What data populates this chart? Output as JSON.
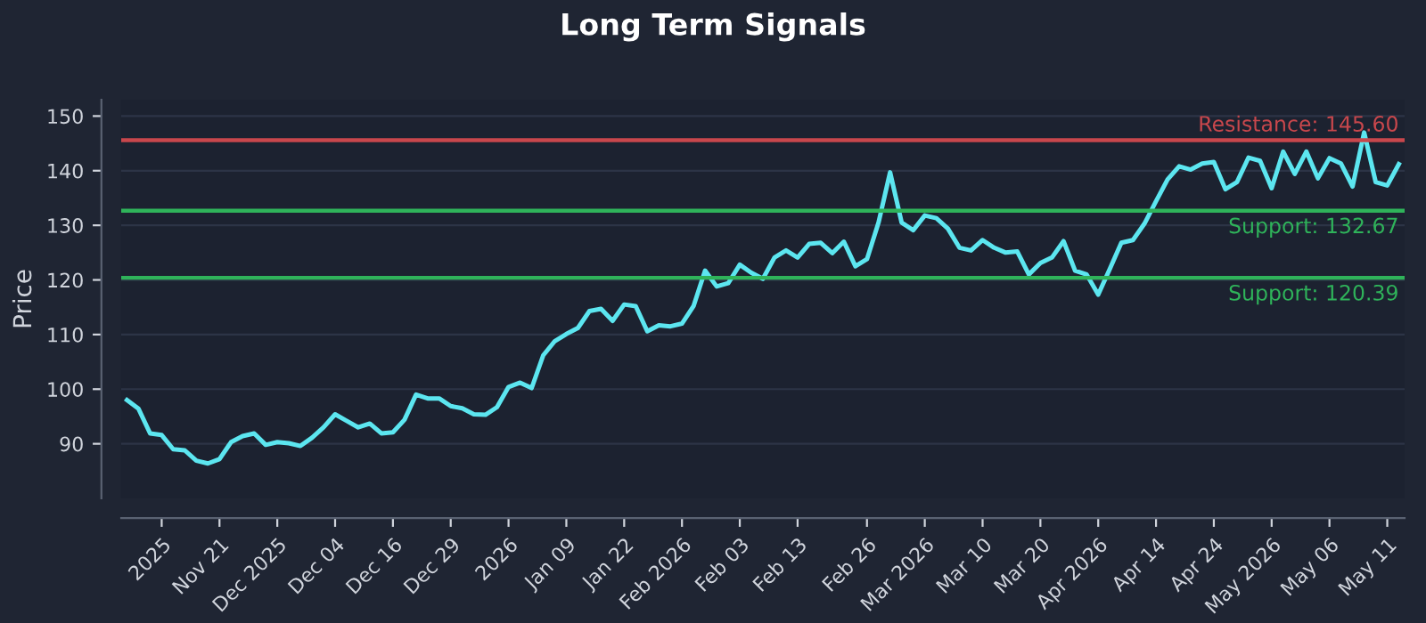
{
  "chart_data": {
    "type": "line",
    "title": "Long Term Signals",
    "ylabel": "Price",
    "categories": [
      null,
      null,
      null,
      "2025",
      null,
      null,
      null,
      null,
      "Nov 21",
      null,
      null,
      null,
      null,
      "Dec 2025",
      null,
      null,
      null,
      null,
      "Dec 04",
      null,
      null,
      null,
      null,
      "Dec 16",
      null,
      null,
      null,
      null,
      "Dec 29",
      null,
      null,
      null,
      null,
      "2026",
      null,
      null,
      null,
      null,
      "Jan 09",
      null,
      null,
      null,
      null,
      "Jan 22",
      null,
      null,
      null,
      null,
      "Feb 2026",
      null,
      null,
      null,
      null,
      "Feb 03",
      null,
      null,
      null,
      null,
      "Feb 13",
      null,
      null,
      null,
      null,
      null,
      "Feb 26",
      null,
      null,
      null,
      null,
      "Mar 2026",
      null,
      null,
      null,
      null,
      "Mar 10",
      null,
      null,
      null,
      null,
      "Mar 20",
      null,
      null,
      null,
      null,
      "Apr 2026",
      null,
      null,
      null,
      null,
      "Apr 14",
      null,
      null,
      null,
      null,
      "Apr 24",
      null,
      null,
      null,
      null,
      "May 2026",
      null,
      null,
      null,
      null,
      "May 06",
      null,
      null,
      null,
      null,
      "May 11",
      null
    ],
    "series": [
      {
        "color": "#5ce6f0",
        "values": [
          98.0,
          96.4,
          91.9,
          91.6,
          89.0,
          88.8,
          86.9,
          86.4,
          87.2,
          90.3,
          91.4,
          91.9,
          89.8,
          90.3,
          90.1,
          89.6,
          91.1,
          93.0,
          95.4,
          94.2,
          93.0,
          93.7,
          91.9,
          92.1,
          94.4,
          99.0,
          98.3,
          98.3,
          96.9,
          96.5,
          95.4,
          95.3,
          96.7,
          100.4,
          101.2,
          100.2,
          106.2,
          108.8,
          110.1,
          111.2,
          114.3,
          114.7,
          112.5,
          115.5,
          115.2,
          110.6,
          111.7,
          111.5,
          112.0,
          115.2,
          121.7,
          118.8,
          119.4,
          122.8,
          121.3,
          120.2,
          124.1,
          125.4,
          124.1,
          126.6,
          126.8,
          124.9,
          127.0,
          122.5,
          123.8,
          130.5,
          139.7,
          130.5,
          129.1,
          131.8,
          131.3,
          129.4,
          125.9,
          125.4,
          127.3,
          125.9,
          125.0,
          125.2,
          121.0,
          123.1,
          124.1,
          127.1,
          121.7,
          121.0,
          117.3,
          122.0,
          126.8,
          127.3,
          130.3,
          134.4,
          138.4,
          140.8,
          140.2,
          141.3,
          141.6,
          136.6,
          137.9,
          142.4,
          141.8,
          136.8,
          143.5,
          139.4,
          143.5,
          138.6,
          142.3,
          141.3,
          137.1,
          147.0,
          137.9,
          137.3,
          141.2
        ]
      }
    ],
    "ylim": [
      80,
      153
    ],
    "yticks": [
      90,
      100,
      110,
      120,
      130,
      140,
      150
    ],
    "grid": "y",
    "ref_lines": [
      {
        "axis": "y",
        "value": 145.6,
        "label": "Resistance: 145.60",
        "color": "#c8474c"
      },
      {
        "axis": "y",
        "value": 132.67,
        "label": "Support: 132.67",
        "color": "#2fb35a"
      },
      {
        "axis": "y",
        "value": 120.39,
        "label": "Support: 120.39",
        "color": "#2fb35a"
      }
    ]
  }
}
